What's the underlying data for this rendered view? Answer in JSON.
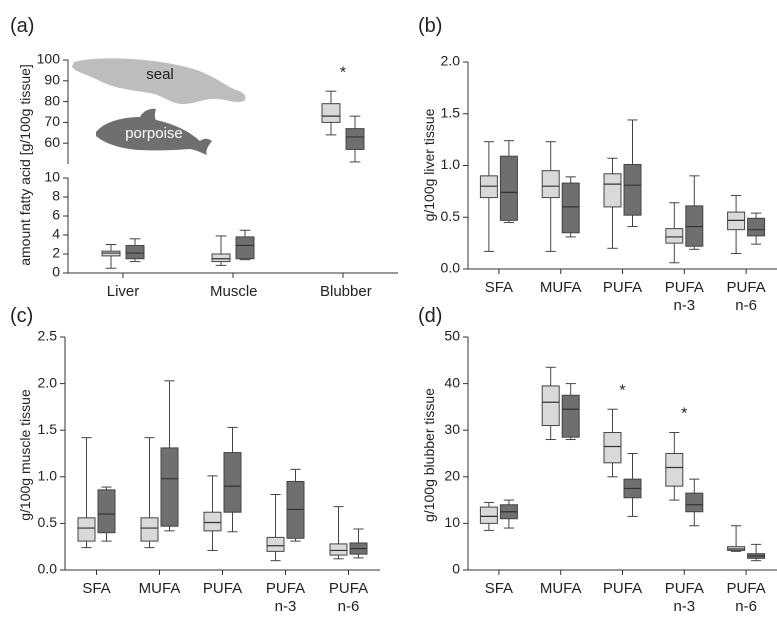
{
  "chart_data": [
    {
      "type": "box",
      "label": "(a)",
      "y_label": "amount fatty acid [g/100g tissue]",
      "categories": [
        "Liver",
        "Muscle",
        "Blubber"
      ],
      "y_segments": [
        {
          "ylim": [
            0,
            10
          ],
          "yticks": [
            0,
            2,
            4,
            6,
            8,
            10
          ]
        },
        {
          "ylim": [
            50,
            100
          ],
          "yticks": [
            60,
            70,
            80,
            90,
            100
          ]
        }
      ],
      "series": [
        {
          "name": "seal",
          "color": "#d9d9d9",
          "values": [
            {
              "min": 0.5,
              "q1": 1.8,
              "median": 2.1,
              "q3": 2.3,
              "max": 3.0
            },
            {
              "min": 0.8,
              "q1": 1.2,
              "median": 1.5,
              "q3": 2.0,
              "max": 3.9
            },
            {
              "min": 64,
              "q1": 70,
              "median": 73,
              "q3": 79,
              "max": 85
            }
          ]
        },
        {
          "name": "porpoise",
          "color": "#6f6f6f",
          "values": [
            {
              "min": 1.2,
              "q1": 1.5,
              "median": 2.1,
              "q3": 2.9,
              "max": 3.6
            },
            {
              "min": 1.4,
              "q1": 1.5,
              "median": 2.9,
              "q3": 3.8,
              "max": 4.5
            },
            {
              "min": 51,
              "q1": 57,
              "median": 63,
              "q3": 67,
              "max": 73
            }
          ]
        }
      ],
      "annotations": [
        {
          "text": "*",
          "category": "Blubber"
        }
      ]
    },
    {
      "type": "box",
      "label": "(b)",
      "y_label": "g/100g liver tissue",
      "categories": [
        "SFA",
        "MUFA",
        "PUFA",
        "PUFA n-3",
        "PUFA n-6"
      ],
      "ylim": [
        0,
        2
      ],
      "yticks": [
        {
          "value": 0,
          "label": "0.0"
        },
        0.5,
        {
          "value": 1,
          "label": "1.0"
        },
        1.5,
        {
          "value": 2,
          "label": "2.0"
        }
      ],
      "series": [
        {
          "color": "#d9d9d9",
          "values": [
            {
              "min": 0.17,
              "q1": 0.69,
              "median": 0.8,
              "q3": 0.9,
              "max": 1.23
            },
            {
              "min": 0.17,
              "q1": 0.69,
              "median": 0.8,
              "q3": 0.95,
              "max": 1.23
            },
            {
              "min": 0.2,
              "q1": 0.6,
              "median": 0.82,
              "q3": 0.92,
              "max": 1.07
            },
            {
              "min": 0.06,
              "q1": 0.25,
              "median": 0.31,
              "q3": 0.39,
              "max": 0.64
            },
            {
              "min": 0.15,
              "q1": 0.38,
              "median": 0.47,
              "q3": 0.55,
              "max": 0.71
            }
          ]
        },
        {
          "color": "#6f6f6f",
          "values": [
            {
              "min": 0.45,
              "q1": 0.47,
              "median": 0.74,
              "q3": 1.09,
              "max": 1.24
            },
            {
              "min": 0.31,
              "q1": 0.35,
              "median": 0.6,
              "q3": 0.83,
              "max": 0.89
            },
            {
              "min": 0.41,
              "q1": 0.52,
              "median": 0.81,
              "q3": 1.01,
              "max": 1.44
            },
            {
              "min": 0.19,
              "q1": 0.22,
              "median": 0.41,
              "q3": 0.61,
              "max": 0.9
            },
            {
              "min": 0.24,
              "q1": 0.32,
              "median": 0.38,
              "q3": 0.49,
              "max": 0.54
            }
          ]
        }
      ]
    },
    {
      "type": "box",
      "label": "(c)",
      "y_label": "g/100g muscle tissue",
      "categories": [
        "SFA",
        "MUFA",
        "PUFA",
        "PUFA n-3",
        "PUFA n-6"
      ],
      "ylim": [
        0,
        2.5
      ],
      "yticks": [
        {
          "value": 0,
          "label": "0.0"
        },
        0.5,
        {
          "value": 1,
          "label": "1.0"
        },
        1.5,
        {
          "value": 2,
          "label": "2.0"
        },
        2.5
      ],
      "series": [
        {
          "color": "#d9d9d9",
          "values": [
            {
              "min": 0.24,
              "q1": 0.31,
              "median": 0.45,
              "q3": 0.56,
              "max": 1.42
            },
            {
              "min": 0.24,
              "q1": 0.31,
              "median": 0.45,
              "q3": 0.56,
              "max": 1.42
            },
            {
              "min": 0.21,
              "q1": 0.42,
              "median": 0.51,
              "q3": 0.62,
              "max": 1.01
            },
            {
              "min": 0.1,
              "q1": 0.2,
              "median": 0.26,
              "q3": 0.35,
              "max": 0.81
            },
            {
              "min": 0.12,
              "q1": 0.16,
              "median": 0.21,
              "q3": 0.28,
              "max": 0.68
            }
          ]
        },
        {
          "color": "#6f6f6f",
          "values": [
            {
              "min": 0.31,
              "q1": 0.4,
              "median": 0.6,
              "q3": 0.86,
              "max": 0.89
            },
            {
              "min": 0.42,
              "q1": 0.47,
              "median": 0.98,
              "q3": 1.31,
              "max": 2.03
            },
            {
              "min": 0.41,
              "q1": 0.62,
              "median": 0.9,
              "q3": 1.26,
              "max": 1.53
            },
            {
              "min": 0.31,
              "q1": 0.34,
              "median": 0.65,
              "q3": 0.95,
              "max": 1.08
            },
            {
              "min": 0.13,
              "q1": 0.17,
              "median": 0.23,
              "q3": 0.29,
              "max": 0.44
            }
          ]
        }
      ]
    },
    {
      "type": "box",
      "label": "(d)",
      "y_label": "g/100g blubber tissue",
      "categories": [
        "SFA",
        "MUFA",
        "PUFA",
        "PUFA n-3",
        "PUFA n-6"
      ],
      "ylim": [
        0,
        50
      ],
      "yticks": [
        0,
        10,
        20,
        30,
        40,
        50
      ],
      "series": [
        {
          "color": "#d9d9d9",
          "values": [
            {
              "min": 8.5,
              "q1": 10,
              "median": 11.5,
              "q3": 13.5,
              "max": 14.5
            },
            {
              "min": 28,
              "q1": 31,
              "median": 36,
              "q3": 39.5,
              "max": 43.5
            },
            {
              "min": 20,
              "q1": 23,
              "median": 26.5,
              "q3": 29.5,
              "max": 34.5
            },
            {
              "min": 15,
              "q1": 18,
              "median": 22,
              "q3": 25,
              "max": 29.5
            },
            {
              "min": 4,
              "q1": 4.2,
              "median": 4.5,
              "q3": 5,
              "max": 9.5
            }
          ]
        },
        {
          "color": "#6f6f6f",
          "values": [
            {
              "min": 9,
              "q1": 11,
              "median": 12.5,
              "q3": 14,
              "max": 15
            },
            {
              "min": 28,
              "q1": 28.5,
              "median": 34.5,
              "q3": 37.5,
              "max": 40
            },
            {
              "min": 11.5,
              "q1": 15.5,
              "median": 17.5,
              "q3": 19.5,
              "max": 25
            },
            {
              "min": 9.5,
              "q1": 12.5,
              "median": 14,
              "q3": 16.5,
              "max": 19.5
            },
            {
              "min": 2,
              "q1": 2.5,
              "median": 3,
              "q3": 3.5,
              "max": 5.5
            }
          ]
        }
      ],
      "annotations": [
        {
          "text": "*",
          "category": "PUFA"
        },
        {
          "text": "*",
          "category": "PUFA n-3"
        }
      ]
    }
  ]
}
